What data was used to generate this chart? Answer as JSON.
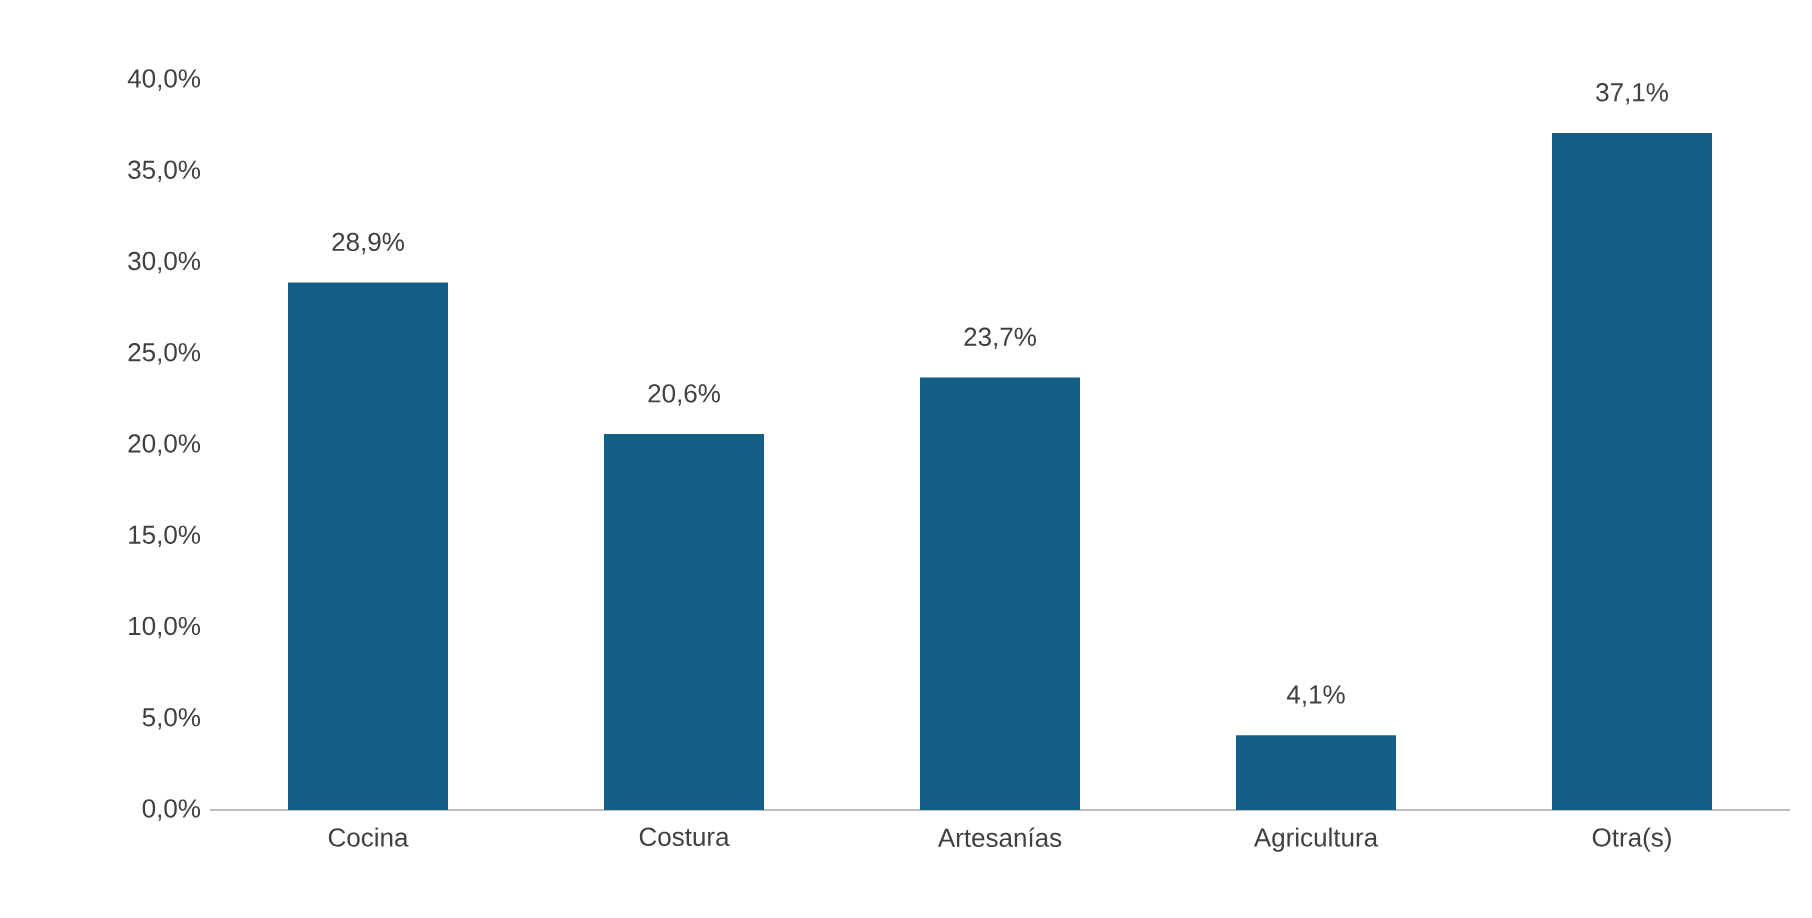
{
  "chart_data": {
    "type": "bar",
    "categories": [
      "Cocina",
      "Costura",
      "Artesanías",
      "Agricultura",
      "Otra(s)"
    ],
    "values": [
      28.9,
      20.6,
      23.7,
      4.1,
      37.1
    ],
    "value_labels": [
      "28,9%",
      "20,6%",
      "23,7%",
      "4,1%",
      "37,1%"
    ],
    "color": "#135e85",
    "ylim": [
      0,
      40
    ],
    "yticks": [
      {
        "value": 0,
        "label": "0,0%"
      },
      {
        "value": 5,
        "label": "5,0%"
      },
      {
        "value": 10,
        "label": "10,0%"
      },
      {
        "value": 15,
        "label": "15,0%"
      },
      {
        "value": 20,
        "label": "20,0%"
      },
      {
        "value": 25,
        "label": "25,0%"
      },
      {
        "value": 30,
        "label": "30,0%"
      },
      {
        "value": 35,
        "label": "35,0%"
      },
      {
        "value": 40,
        "label": "40,0%"
      }
    ],
    "grid": false
  }
}
